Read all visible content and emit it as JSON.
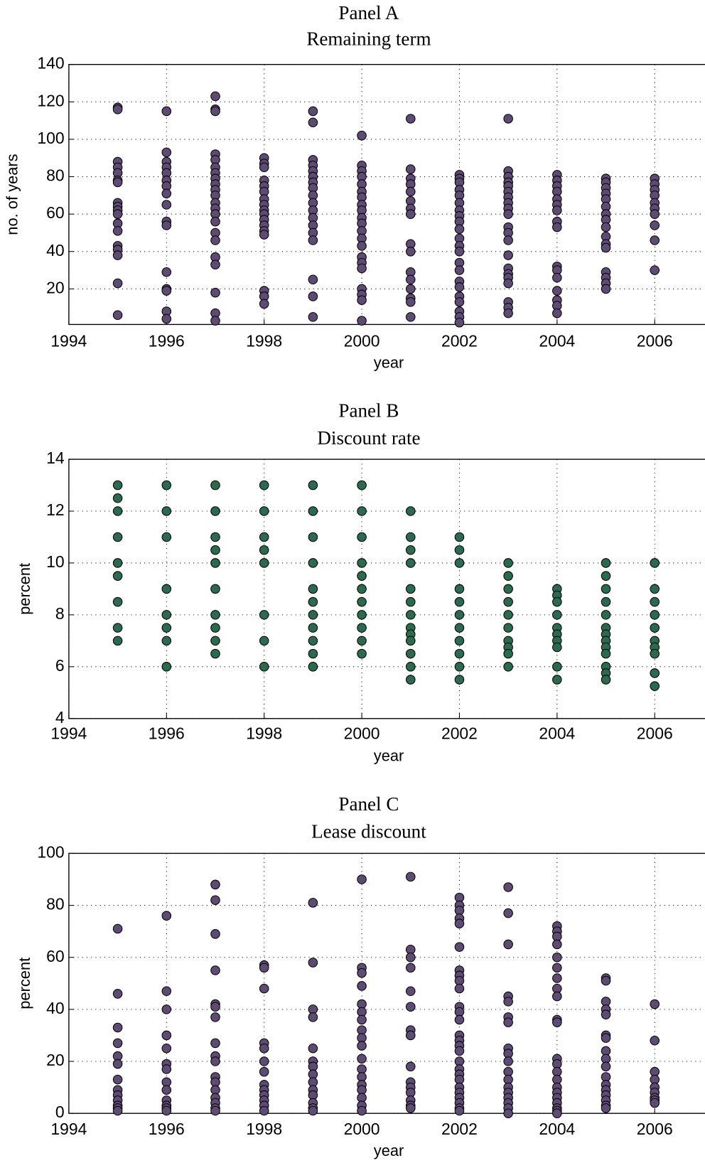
{
  "chart_data": [
    {
      "type": "scatter",
      "title": "Panel A",
      "subtitle": "Remaining term",
      "x_label": "year",
      "y_label": "no. of years",
      "color": "#5e4b74",
      "xlim": [
        1994,
        2007
      ],
      "xticks": [
        1994,
        1996,
        1998,
        2000,
        2002,
        2004,
        2006
      ],
      "ylim": [
        1,
        140
      ],
      "yticks": [
        20,
        40,
        60,
        80,
        100,
        120,
        140
      ],
      "grid": true,
      "data": [
        {
          "x": 1995,
          "values": [
            117,
            116,
            88,
            85,
            82,
            78,
            77,
            66,
            64,
            62,
            60,
            55,
            51,
            43,
            41,
            38,
            23,
            6
          ]
        },
        {
          "x": 1996,
          "values": [
            115,
            93,
            88,
            85,
            82,
            78,
            75,
            71,
            65,
            56,
            54,
            29,
            20,
            19,
            8,
            4
          ]
        },
        {
          "x": 1997,
          "values": [
            123,
            116,
            115,
            92,
            89,
            85,
            82,
            79,
            76,
            73,
            70,
            66,
            63,
            60,
            56,
            50,
            46,
            37,
            33,
            18,
            7,
            3
          ]
        },
        {
          "x": 1998,
          "values": [
            90,
            87,
            85,
            78,
            75,
            72,
            68,
            65,
            62,
            60,
            57,
            54,
            51,
            49,
            19,
            16,
            12
          ]
        },
        {
          "x": 1999,
          "values": [
            115,
            109,
            89,
            86,
            83,
            80,
            77,
            74,
            70,
            66,
            62,
            58,
            54,
            50,
            46,
            25,
            16,
            5
          ]
        },
        {
          "x": 2000,
          "values": [
            102,
            86,
            83,
            80,
            76,
            72,
            69,
            65,
            62,
            58,
            55,
            51,
            47,
            43,
            37,
            34,
            31,
            20,
            17,
            14,
            3
          ]
        },
        {
          "x": 2001,
          "values": [
            111,
            84,
            79,
            76,
            72,
            67,
            63,
            60,
            44,
            40,
            29,
            25,
            20,
            15,
            13,
            5
          ]
        },
        {
          "x": 2002,
          "values": [
            81,
            79,
            77,
            73,
            70,
            66,
            62,
            59,
            56,
            52,
            47,
            43,
            40,
            34,
            30,
            24,
            21,
            16,
            13,
            8,
            5,
            2
          ]
        },
        {
          "x": 2003,
          "values": [
            111,
            83,
            80,
            77,
            75,
            72,
            69,
            66,
            63,
            60,
            53,
            50,
            46,
            38,
            31,
            28,
            26,
            23,
            13,
            10,
            7
          ]
        },
        {
          "x": 2004,
          "values": [
            81,
            78,
            75,
            72,
            68,
            65,
            62,
            56,
            53,
            32,
            30,
            26,
            19,
            14,
            11,
            7
          ]
        },
        {
          "x": 2005,
          "values": [
            79,
            77,
            74,
            71,
            68,
            64,
            60,
            57,
            53,
            48,
            44,
            42,
            29,
            26,
            23,
            20
          ]
        },
        {
          "x": 2006,
          "values": [
            79,
            76,
            73,
            70,
            66,
            63,
            60,
            54,
            46,
            30
          ]
        }
      ]
    },
    {
      "type": "scatter",
      "title": "Panel B",
      "subtitle": "Discount rate",
      "x_label": "year",
      "y_label": "percent",
      "color": "#2b6a50",
      "xlim": [
        1994,
        2007
      ],
      "xticks": [
        1994,
        1996,
        1998,
        2000,
        2002,
        2004,
        2006
      ],
      "ylim": [
        4,
        14
      ],
      "yticks": [
        4,
        6,
        8,
        10,
        12,
        14
      ],
      "grid": true,
      "data": [
        {
          "x": 1995,
          "values": [
            13,
            12.5,
            12,
            11,
            10,
            9.5,
            8.5,
            7.5,
            7
          ]
        },
        {
          "x": 1996,
          "values": [
            13,
            12,
            11,
            9,
            8,
            7.5,
            7,
            6
          ]
        },
        {
          "x": 1997,
          "values": [
            13,
            12,
            11,
            10.5,
            10,
            9,
            8,
            7.5,
            7,
            6.5
          ]
        },
        {
          "x": 1998,
          "values": [
            13,
            12,
            11,
            10.5,
            10,
            8,
            7,
            6
          ]
        },
        {
          "x": 1999,
          "values": [
            13,
            12,
            11,
            10,
            9,
            8.5,
            8,
            7.5,
            7,
            6.5,
            6
          ]
        },
        {
          "x": 2000,
          "values": [
            13,
            12,
            11,
            10,
            9.5,
            9,
            8.5,
            8,
            7.5,
            7,
            6.5
          ]
        },
        {
          "x": 2001,
          "values": [
            12,
            11,
            10.5,
            10,
            9,
            8.5,
            8,
            7.5,
            7.25,
            7,
            6.5,
            6,
            5.5
          ]
        },
        {
          "x": 2002,
          "values": [
            11,
            10.5,
            10,
            9,
            8.5,
            8,
            7.5,
            7,
            6.5,
            6,
            5.5
          ]
        },
        {
          "x": 2003,
          "values": [
            10,
            9.5,
            9,
            8.5,
            8,
            7.5,
            7,
            6.75,
            6.5,
            6
          ]
        },
        {
          "x": 2004,
          "values": [
            9,
            8.75,
            8.5,
            8,
            7.5,
            7.25,
            7,
            6.75,
            6,
            5.5
          ]
        },
        {
          "x": 2005,
          "values": [
            10,
            9.5,
            9,
            8.5,
            8,
            7.5,
            7.25,
            7,
            6.75,
            6.5,
            6,
            5.75,
            5.5
          ]
        },
        {
          "x": 2006,
          "values": [
            10,
            9,
            8.5,
            8,
            7.5,
            7,
            6.75,
            6.5,
            5.75,
            5.25
          ]
        }
      ]
    },
    {
      "type": "scatter",
      "title": "Panel C",
      "subtitle": "Lease discount",
      "x_label": "year",
      "y_label": "percent",
      "color": "#5e4b74",
      "xlim": [
        1994,
        2007
      ],
      "xticks": [
        1994,
        1996,
        1998,
        2000,
        2002,
        2004,
        2006
      ],
      "ylim": [
        0,
        100
      ],
      "yticks": [
        0,
        20,
        40,
        60,
        80,
        100
      ],
      "grid": true,
      "data": [
        {
          "x": 1995,
          "values": [
            71,
            46,
            33,
            27,
            22,
            19,
            13,
            9,
            7,
            5,
            3,
            2,
            1
          ]
        },
        {
          "x": 1996,
          "values": [
            76,
            47,
            40,
            30,
            25,
            19,
            17,
            12,
            9,
            5,
            3,
            2,
            1
          ]
        },
        {
          "x": 1997,
          "values": [
            88,
            82,
            69,
            55,
            42,
            41,
            37,
            27,
            22,
            20,
            14,
            12,
            9,
            6,
            4,
            2,
            1
          ]
        },
        {
          "x": 1998,
          "values": [
            57,
            56,
            48,
            27,
            25,
            20,
            16,
            11,
            9,
            7,
            5,
            3,
            1
          ]
        },
        {
          "x": 1999,
          "values": [
            81,
            58,
            40,
            37,
            25,
            20,
            18,
            15,
            12,
            9,
            7,
            4,
            2,
            1
          ]
        },
        {
          "x": 2000,
          "values": [
            90,
            56,
            54,
            49,
            42,
            39,
            36,
            32,
            29,
            26,
            21,
            17,
            14,
            11,
            9,
            6,
            3,
            1
          ]
        },
        {
          "x": 2001,
          "values": [
            91,
            63,
            60,
            56,
            47,
            41,
            32,
            30,
            18,
            12,
            10,
            8,
            5,
            3,
            2
          ]
        },
        {
          "x": 2002,
          "values": [
            83,
            80,
            78,
            75,
            73,
            64,
            55,
            53,
            51,
            48,
            41,
            39,
            36,
            30,
            28,
            26,
            24,
            20,
            17,
            15,
            13,
            10,
            8,
            6,
            4,
            2,
            1
          ]
        },
        {
          "x": 2003,
          "values": [
            87,
            77,
            65,
            45,
            43,
            37,
            35,
            25,
            23,
            20,
            16,
            13,
            10,
            8,
            6,
            4,
            2,
            0
          ]
        },
        {
          "x": 2004,
          "values": [
            72,
            70,
            68,
            65,
            60,
            56,
            52,
            48,
            45,
            36,
            35,
            21,
            19,
            16,
            13,
            10,
            8,
            6,
            4,
            2,
            1,
            0
          ]
        },
        {
          "x": 2005,
          "values": [
            52,
            51,
            43,
            40,
            38,
            30,
            29,
            24,
            21,
            18,
            14,
            11,
            9,
            7,
            5,
            3,
            2
          ]
        },
        {
          "x": 2006,
          "values": [
            42,
            28,
            16,
            13,
            10,
            8,
            6,
            5,
            4
          ]
        }
      ]
    }
  ]
}
